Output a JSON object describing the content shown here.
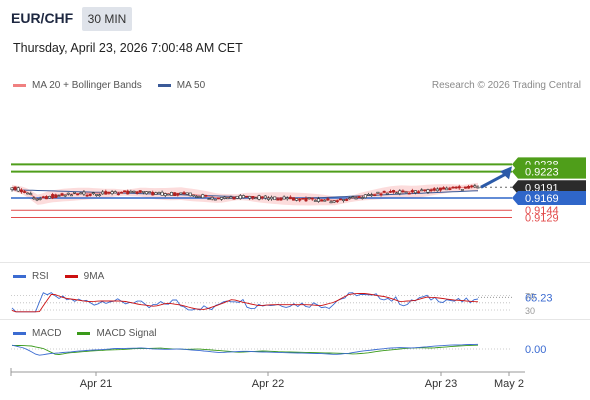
{
  "header": {
    "pair": "EUR/CHF",
    "timeframe": "30 MIN",
    "timestamp": "Thursday, April 23, 2026 7:00:48 AM CET"
  },
  "legend": {
    "ma20_label": "MA 20 + Bollinger Bands",
    "ma50_label": "MA 50",
    "credit": "Research © 2026 Trading Central"
  },
  "rsi_legend": {
    "rsi_label": "RSI",
    "ma_label": "9MA",
    "value": "65.23"
  },
  "macd_legend": {
    "macd_label": "MACD",
    "signal_label": "MACD Signal",
    "value": "0.00"
  },
  "colors": {
    "resistance": "#4f9e1a",
    "current": "#2b2b2b",
    "support": "#2f66c9",
    "red_level": "#e24a4a",
    "ma20": "#f08080",
    "ma50": "#3b5a98",
    "band": "#fbd0d0",
    "arrow": "#2b5aa8"
  },
  "chart_data": {
    "type": "candlestick",
    "instrument": "EUR/CHF",
    "interval": "30 MIN",
    "price_levels": [
      {
        "label": "0.9238",
        "value": 0.9238,
        "kind": "resistance"
      },
      {
        "label": "0.9223",
        "value": 0.9223,
        "kind": "resistance"
      },
      {
        "label": "0.9191",
        "value": 0.9191,
        "kind": "last"
      },
      {
        "label": "0.9169",
        "value": 0.9169,
        "kind": "support"
      },
      {
        "label": "0.9144",
        "value": 0.9144,
        "kind": "level"
      },
      {
        "label": "0.9129",
        "value": 0.9129,
        "kind": "level"
      }
    ],
    "x_tick_labels": [
      "Apr 21",
      "Apr 22",
      "Apr 23",
      "May 2"
    ],
    "close_path": [
      0.919,
      0.9183,
      0.9165,
      0.9172,
      0.9175,
      0.9177,
      0.9178,
      0.9178,
      0.918,
      0.918,
      0.9181,
      0.9178,
      0.9177,
      0.9178,
      0.9175,
      0.9172,
      0.9168,
      0.917,
      0.9172,
      0.917,
      0.9169,
      0.9168,
      0.9167,
      0.9166,
      0.9165,
      0.9163,
      0.9166,
      0.9172,
      0.9176,
      0.918,
      0.9182,
      0.9181,
      0.9184,
      0.9187,
      0.9189,
      0.919,
      0.9191
    ],
    "forecast_arrow": {
      "from": 0.9191,
      "to": 0.9238
    },
    "rsi": {
      "value": 65.23,
      "levels": [
        70,
        50,
        30
      ]
    },
    "macd": {
      "value": 0.0
    }
  }
}
